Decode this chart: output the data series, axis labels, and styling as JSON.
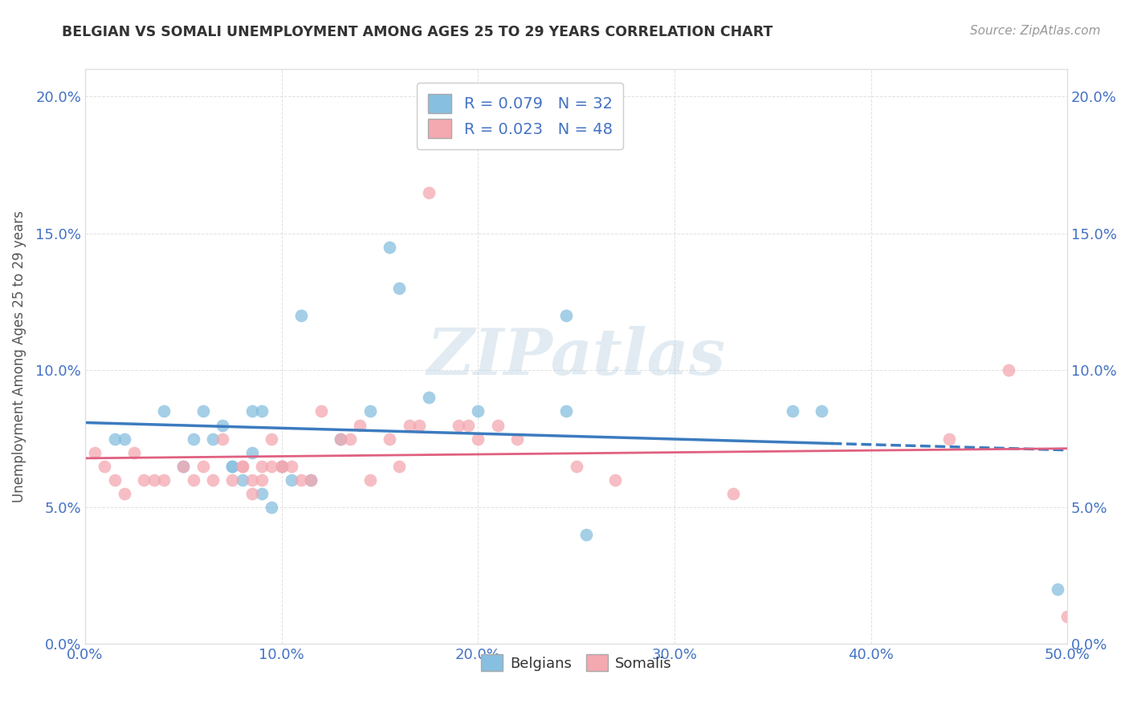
{
  "title": "BELGIAN VS SOMALI UNEMPLOYMENT AMONG AGES 25 TO 29 YEARS CORRELATION CHART",
  "source": "Source: ZipAtlas.com",
  "ylabel": "Unemployment Among Ages 25 to 29 years",
  "xlim": [
    0.0,
    0.5
  ],
  "ylim": [
    0.0,
    0.21
  ],
  "xticks": [
    0.0,
    0.1,
    0.2,
    0.3,
    0.4,
    0.5
  ],
  "yticks": [
    0.0,
    0.05,
    0.1,
    0.15,
    0.2
  ],
  "xticklabels": [
    "0.0%",
    "10.0%",
    "20.0%",
    "30.0%",
    "40.0%",
    "50.0%"
  ],
  "yticklabels": [
    "0.0%",
    "5.0%",
    "10.0%",
    "15.0%",
    "20.0%"
  ],
  "belgian_color": "#87bfe0",
  "somali_color": "#f4a8b0",
  "belgian_line_color": "#3c7bbf",
  "somali_line_color": "#e06080",
  "R_belgian": 0.079,
  "N_belgian": 32,
  "R_somali": 0.023,
  "N_somali": 48,
  "belgian_x": [
    0.015,
    0.02,
    0.04,
    0.05,
    0.055,
    0.06,
    0.065,
    0.07,
    0.075,
    0.075,
    0.08,
    0.085,
    0.085,
    0.09,
    0.09,
    0.095,
    0.1,
    0.105,
    0.11,
    0.115,
    0.13,
    0.145,
    0.155,
    0.16,
    0.175,
    0.2,
    0.245,
    0.255,
    0.36,
    0.375,
    0.245,
    0.495
  ],
  "belgian_y": [
    0.075,
    0.075,
    0.085,
    0.065,
    0.075,
    0.085,
    0.075,
    0.08,
    0.065,
    0.065,
    0.06,
    0.07,
    0.085,
    0.055,
    0.085,
    0.05,
    0.065,
    0.06,
    0.12,
    0.06,
    0.075,
    0.085,
    0.145,
    0.13,
    0.09,
    0.085,
    0.085,
    0.04,
    0.085,
    0.085,
    0.12,
    0.02
  ],
  "somali_x": [
    0.005,
    0.01,
    0.015,
    0.02,
    0.025,
    0.03,
    0.035,
    0.04,
    0.05,
    0.055,
    0.06,
    0.065,
    0.07,
    0.075,
    0.08,
    0.08,
    0.085,
    0.085,
    0.09,
    0.09,
    0.095,
    0.095,
    0.1,
    0.1,
    0.105,
    0.11,
    0.115,
    0.12,
    0.13,
    0.135,
    0.14,
    0.145,
    0.155,
    0.16,
    0.165,
    0.17,
    0.175,
    0.19,
    0.195,
    0.2,
    0.21,
    0.22,
    0.25,
    0.27,
    0.33,
    0.44,
    0.47,
    0.5
  ],
  "somali_y": [
    0.07,
    0.065,
    0.06,
    0.055,
    0.07,
    0.06,
    0.06,
    0.06,
    0.065,
    0.06,
    0.065,
    0.06,
    0.075,
    0.06,
    0.065,
    0.065,
    0.06,
    0.055,
    0.06,
    0.065,
    0.065,
    0.075,
    0.065,
    0.065,
    0.065,
    0.06,
    0.06,
    0.085,
    0.075,
    0.075,
    0.08,
    0.06,
    0.075,
    0.065,
    0.08,
    0.08,
    0.165,
    0.08,
    0.08,
    0.075,
    0.08,
    0.075,
    0.065,
    0.06,
    0.055,
    0.075,
    0.1,
    0.01
  ],
  "watermark_text": "ZIPatlas",
  "background_color": "#ffffff",
  "grid_color": "#cccccc",
  "title_color": "#333333",
  "axis_tick_color": "#4472c4",
  "legend_text_color": "#4472c4"
}
